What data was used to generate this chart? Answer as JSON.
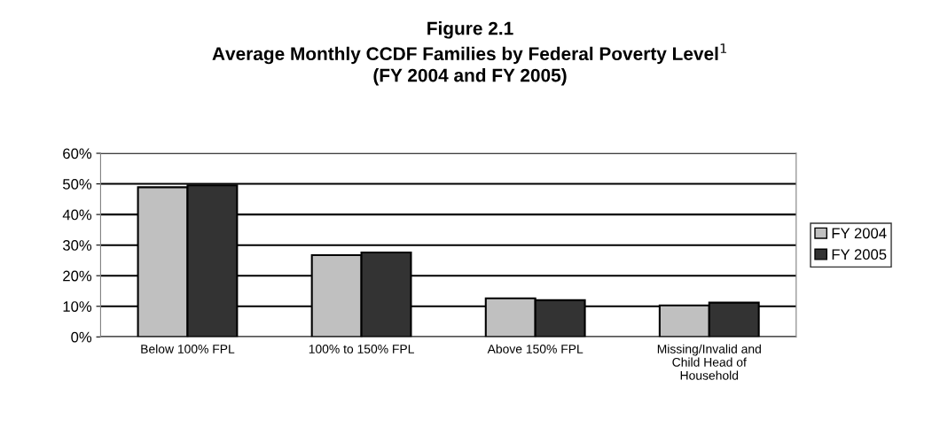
{
  "chart_data": {
    "type": "bar",
    "title": "Figure 2.1\nAverage Monthly CCDF Families by Federal Poverty Level$^{1}$\n(FY 2004 and FY 2005)",
    "categories": [
      "Below 100% FPL",
      "100% to 150% FPL",
      "Above 150% FPL",
      "Missing/Invalid and\nChild Head of\nHousehold"
    ],
    "series": [
      {
        "name": "FY 2004",
        "color": "#c0c0c0",
        "values": [
          48.9,
          26.7,
          12.6,
          10.3
        ]
      },
      {
        "name": "FY 2005",
        "color": "#333333",
        "values": [
          49.5,
          27.6,
          12.0,
          11.2
        ]
      }
    ],
    "ylim": [
      0,
      60
    ],
    "yticks": [
      {
        "value": 0,
        "label": "0%"
      },
      {
        "value": 10,
        "label": "10%"
      },
      {
        "value": 20,
        "label": "20%"
      },
      {
        "value": 30,
        "label": "30%"
      },
      {
        "value": 40,
        "label": "40%"
      },
      {
        "value": 50,
        "label": "50%"
      },
      {
        "value": 60,
        "label": "60%"
      }
    ],
    "grid": "y",
    "legend": "right"
  }
}
